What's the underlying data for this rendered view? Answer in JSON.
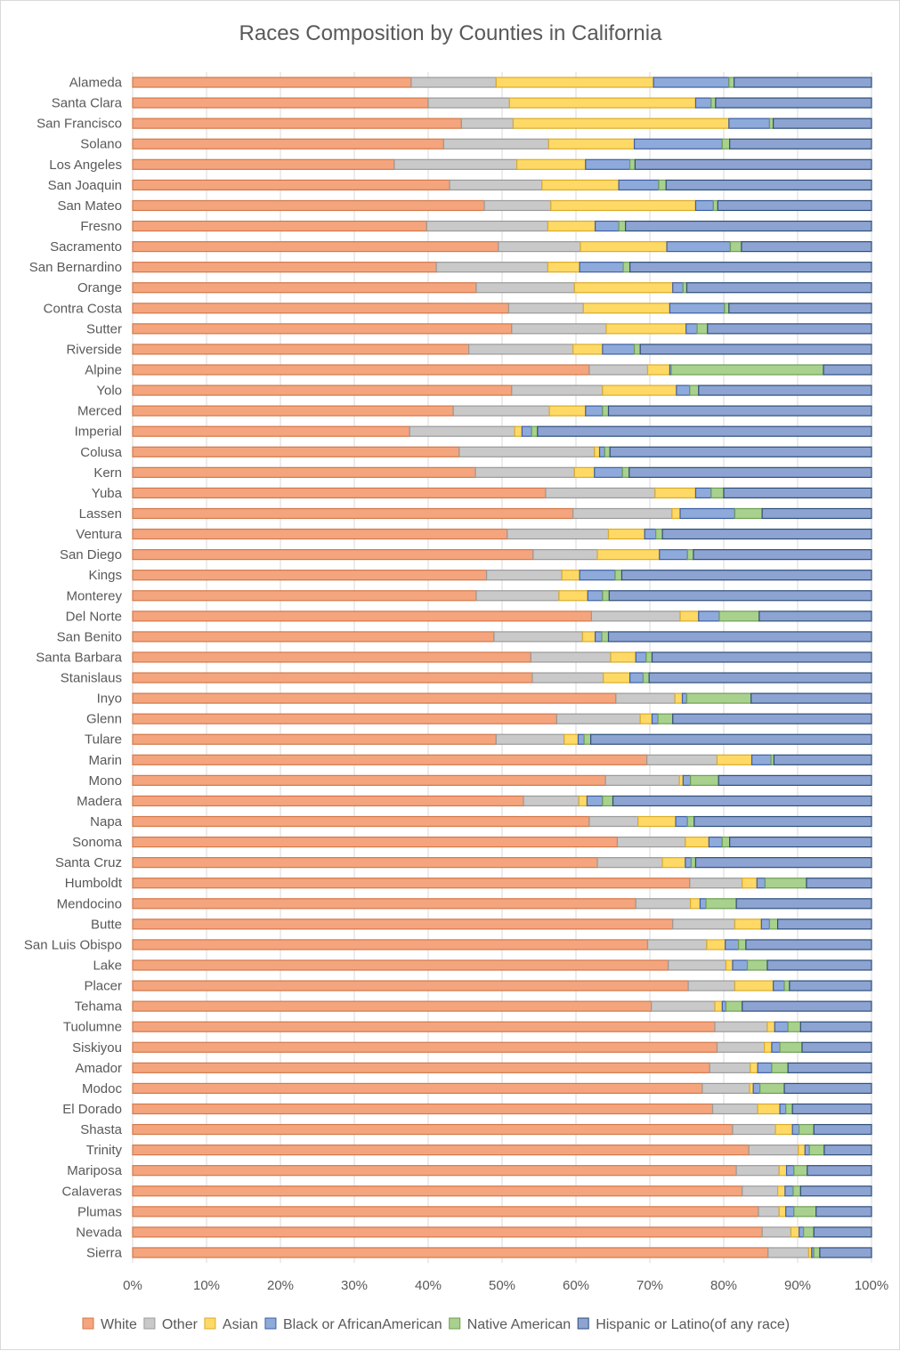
{
  "chart_data": {
    "type": "bar",
    "orientation": "horizontal",
    "stacked": "percent",
    "title": "Races Composition by Counties in California",
    "xlim": [
      0,
      100
    ],
    "x_tick_labels": [
      "0%",
      "10%",
      "20%",
      "30%",
      "40%",
      "50%",
      "60%",
      "70%",
      "80%",
      "90%",
      "100%"
    ],
    "grid": true,
    "legend_position": "bottom",
    "categories": [
      "Alameda",
      "Santa Clara",
      "San Francisco",
      "Solano",
      "Los Angeles",
      "San Joaquin",
      "San Mateo",
      "Fresno",
      "Sacramento",
      "San Bernardino",
      "Orange",
      "Contra Costa",
      "Sutter",
      "Riverside",
      "Alpine",
      "Yolo",
      "Merced",
      "Imperial",
      "Colusa",
      "Kern",
      "Yuba",
      "Lassen",
      "Ventura",
      "San Diego",
      "Kings",
      "Monterey",
      "Del Norte",
      "San Benito",
      "Santa Barbara",
      "Stanislaus",
      "Inyo",
      "Glenn",
      "Tulare",
      "Marin",
      "Mono",
      "Madera",
      "Napa",
      "Sonoma",
      "Santa Cruz",
      "Humboldt",
      "Mendocino",
      "Butte",
      "San Luis Obispo",
      "Lake",
      "Placer",
      "Tehama",
      "Tuolumne",
      "Siskiyou",
      "Amador",
      "Modoc",
      "El Dorado",
      "Shasta",
      "Trinity",
      "Mariposa",
      "Calaveras",
      "Plumas",
      "Nevada",
      "Sierra"
    ],
    "series": [
      {
        "name": "White",
        "color": "#f4a57d",
        "values": [
          37.7,
          40.0,
          44.5,
          42.1,
          35.4,
          42.9,
          47.6,
          39.8,
          49.5,
          41.1,
          46.5,
          50.9,
          51.3,
          45.5,
          61.8,
          51.3,
          43.4,
          37.5,
          44.2,
          46.4,
          55.9,
          59.6,
          50.7,
          54.2,
          47.9,
          46.5,
          62.1,
          48.9,
          53.9,
          54.1,
          65.4,
          57.4,
          49.2,
          69.6,
          64.0,
          52.9,
          61.8,
          65.6,
          62.9,
          75.4,
          68.1,
          73.1,
          69.7,
          72.5,
          75.2,
          70.2,
          78.8,
          79.1,
          78.1,
          77.1,
          78.5,
          81.2,
          83.4,
          81.7,
          82.5,
          84.7,
          85.2,
          86.0
        ]
      },
      {
        "name": "Other",
        "color": "#c9c9c9",
        "values": [
          11.5,
          11.0,
          7.0,
          14.2,
          16.6,
          12.5,
          9.0,
          16.4,
          11.1,
          15.1,
          13.3,
          10.1,
          12.8,
          14.1,
          7.9,
          12.3,
          13.0,
          14.2,
          18.3,
          13.4,
          14.8,
          13.4,
          13.7,
          8.7,
          10.2,
          11.2,
          12.0,
          12.0,
          10.8,
          9.6,
          8.0,
          11.3,
          9.2,
          9.5,
          10.0,
          7.5,
          6.6,
          9.2,
          8.8,
          7.1,
          7.4,
          8.4,
          8.0,
          7.8,
          6.3,
          8.6,
          7.1,
          6.4,
          5.5,
          6.4,
          6.1,
          5.8,
          6.7,
          5.8,
          4.8,
          2.8,
          3.9,
          5.5
        ]
      },
      {
        "name": "Asian",
        "color": "#ffd966",
        "values": [
          21.3,
          25.2,
          29.2,
          11.6,
          9.3,
          10.4,
          19.6,
          6.4,
          11.7,
          4.3,
          13.3,
          11.7,
          10.8,
          4.0,
          3.0,
          10.0,
          4.9,
          1.0,
          0.7,
          2.7,
          5.5,
          1.1,
          4.9,
          8.4,
          2.4,
          3.9,
          2.5,
          1.7,
          3.4,
          3.6,
          1.0,
          1.6,
          1.9,
          4.7,
          0.5,
          1.1,
          5.1,
          3.2,
          3.1,
          2.0,
          1.3,
          3.6,
          2.5,
          0.9,
          5.2,
          1.0,
          1.0,
          1.0,
          1.0,
          0.5,
          3.0,
          2.3,
          0.9,
          1.0,
          1.0,
          0.9,
          1.1,
          0.4
        ]
      },
      {
        "name": "Black or AfricanAmerican",
        "color": "#8eaadb",
        "values": [
          10.2,
          2.1,
          5.5,
          11.9,
          6.0,
          5.4,
          2.4,
          3.2,
          8.6,
          5.9,
          1.4,
          7.4,
          1.5,
          4.3,
          0.2,
          1.8,
          2.3,
          1.3,
          0.7,
          3.8,
          2.1,
          7.4,
          1.5,
          3.8,
          4.8,
          2.0,
          2.8,
          0.9,
          1.4,
          1.8,
          0.6,
          0.8,
          0.8,
          2.6,
          1.0,
          2.1,
          1.6,
          1.8,
          0.8,
          1.1,
          0.8,
          1.1,
          1.8,
          2.0,
          1.5,
          0.5,
          1.8,
          1.1,
          1.9,
          0.9,
          0.8,
          0.9,
          0.6,
          1.0,
          1.1,
          1.1,
          0.6,
          0.3
        ]
      },
      {
        "name": "Native American",
        "color": "#a9d18e",
        "values": [
          0.7,
          0.6,
          0.5,
          1.0,
          0.7,
          1.0,
          0.6,
          0.9,
          1.5,
          0.9,
          0.5,
          0.6,
          1.4,
          0.8,
          20.6,
          1.2,
          0.8,
          0.8,
          0.7,
          0.9,
          1.7,
          3.7,
          0.9,
          0.8,
          0.9,
          0.9,
          5.4,
          0.9,
          0.8,
          0.8,
          8.7,
          2.0,
          0.9,
          0.4,
          3.8,
          1.4,
          0.9,
          1.0,
          0.6,
          5.6,
          4.1,
          1.1,
          1.0,
          2.7,
          0.7,
          2.2,
          1.7,
          3.0,
          2.2,
          3.3,
          0.9,
          2.0,
          2.0,
          1.8,
          1.0,
          3.0,
          1.4,
          0.8
        ]
      },
      {
        "name": "Hispanic or Latino(of any race)",
        "color": "#8da3d1",
        "values": [
          18.6,
          21.1,
          13.3,
          19.2,
          32.0,
          27.8,
          20.8,
          33.3,
          17.6,
          32.7,
          25.0,
          19.3,
          22.2,
          31.3,
          6.5,
          23.4,
          35.6,
          45.2,
          35.4,
          32.8,
          20.0,
          14.8,
          28.3,
          24.1,
          33.8,
          35.5,
          15.2,
          35.6,
          29.7,
          30.1,
          16.3,
          26.9,
          38.0,
          13.2,
          20.7,
          35.0,
          24.0,
          19.2,
          23.8,
          8.8,
          18.3,
          12.7,
          17.0,
          14.1,
          11.1,
          17.5,
          9.6,
          9.4,
          11.3,
          11.8,
          10.7,
          7.8,
          6.4,
          8.7,
          9.6,
          7.5,
          7.8,
          7.0
        ]
      }
    ]
  }
}
